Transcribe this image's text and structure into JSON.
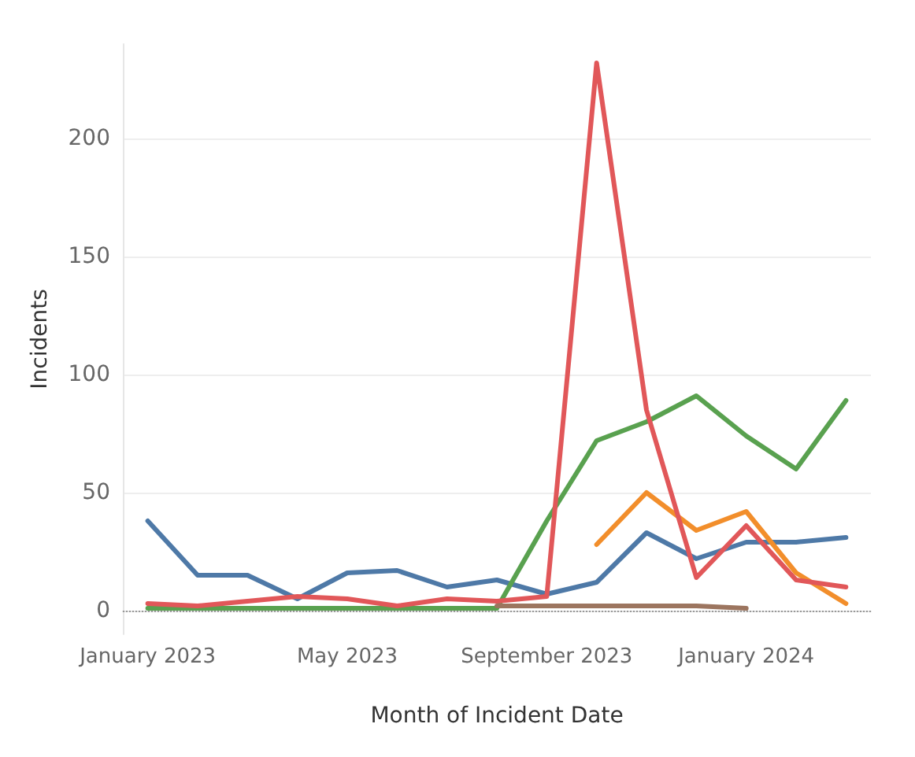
{
  "chart_data": {
    "type": "line",
    "xlabel": "Month of Incident Date",
    "ylabel": "Incidents",
    "categories": [
      "January 2023",
      null,
      null,
      null,
      "May 2023",
      null,
      null,
      null,
      "September 2023",
      null,
      null,
      null,
      "January 2024",
      null,
      null
    ],
    "series": [
      {
        "color": "#4e79a7",
        "values": [
          38,
          15,
          15,
          5,
          16,
          17,
          10,
          13,
          7,
          12,
          33,
          22,
          29,
          29,
          31
        ]
      },
      {
        "color": "#59a14f",
        "values": [
          1,
          1,
          1,
          1,
          1,
          1,
          1,
          1,
          38,
          72,
          80,
          91,
          74,
          60,
          89
        ]
      },
      {
        "color": "#9c755f",
        "values": [
          null,
          null,
          null,
          null,
          null,
          null,
          null,
          2,
          2,
          2,
          2,
          2,
          1,
          null,
          null
        ]
      },
      {
        "color": "#f28e2b",
        "values": [
          null,
          null,
          null,
          null,
          null,
          null,
          null,
          null,
          null,
          28,
          50,
          34,
          42,
          16,
          3
        ]
      },
      {
        "color": "#e15759",
        "values": [
          3,
          2,
          4,
          6,
          5,
          2,
          5,
          4,
          6,
          232,
          85,
          14,
          36,
          13,
          10
        ]
      }
    ],
    "ylim": [
      -10,
      240
    ],
    "yticks": [
      0,
      50,
      100,
      150,
      200
    ],
    "grid": "y",
    "marker": "none",
    "line_style": "solid",
    "ref_lines": [
      {
        "axis": "y",
        "value": 0,
        "color": "#999999",
        "line_style": "dotted"
      }
    ]
  }
}
